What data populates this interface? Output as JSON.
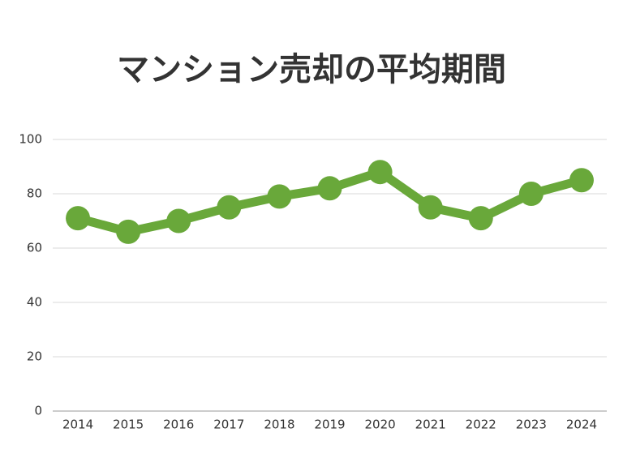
{
  "chart_data": {
    "type": "line",
    "title": "マンション売却の平均期間",
    "categories": [
      "2014",
      "2015",
      "2016",
      "2017",
      "2018",
      "2019",
      "2020",
      "2021",
      "2022",
      "2023",
      "2024"
    ],
    "series": [
      {
        "color": "#69a83a",
        "values": [
          71,
          66,
          70,
          75,
          79,
          82,
          88,
          75,
          71,
          80,
          85
        ]
      }
    ],
    "ylim": [
      0,
      100
    ],
    "yticks": [
      0,
      20,
      40,
      60,
      80,
      100
    ],
    "grid": true
  }
}
